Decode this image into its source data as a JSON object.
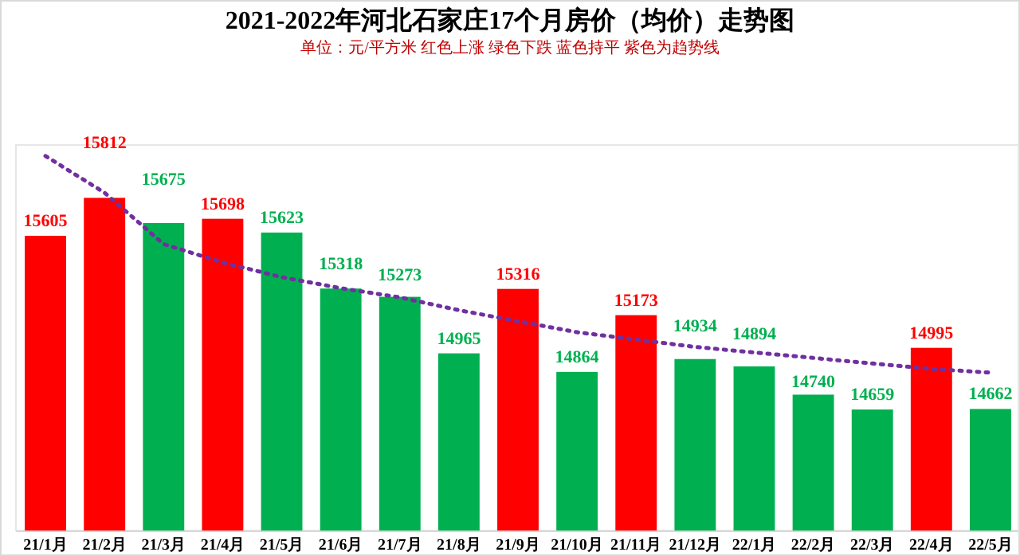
{
  "chart_data": {
    "type": "bar",
    "title": "2021-2022年河北石家庄17个月房价（均价）走势图",
    "subtitle": "单位：元/平方米   红色上涨   绿色下跌   蓝色持平   紫色为趋势线",
    "categories": [
      "21/1月",
      "21/2月",
      "21/3月",
      "21/4月",
      "21/5月",
      "21/6月",
      "21/7月",
      "21/8月",
      "21/9月",
      "21/10月",
      "21/11月",
      "21/12月",
      "22/1月",
      "22/2月",
      "22/3月",
      "22/4月",
      "22/5月"
    ],
    "ylim": [
      14000,
      16100
    ],
    "series": [
      {
        "values": [
          15605,
          15812,
          15675,
          15698,
          15623,
          15318,
          15273,
          14965,
          15316,
          14864,
          15173,
          14934,
          14894,
          14740,
          14659,
          14995,
          14662
        ],
        "value_labels": [
          "15605",
          "15812",
          "15675",
          "15698",
          "15623",
          "15318",
          "15273",
          "14965",
          "15316",
          "14864",
          "15173",
          "14934",
          "14894",
          "14740",
          "14659",
          "14995",
          "14662"
        ],
        "colors": [
          "#ff0000",
          "#ff0000",
          "#00b050",
          "#ff0000",
          "#00b050",
          "#00b050",
          "#00b050",
          "#00b050",
          "#ff0000",
          "#00b050",
          "#ff0000",
          "#00b050",
          "#00b050",
          "#00b050",
          "#00b050",
          "#ff0000",
          "#00b050"
        ]
      },
      {
        "type": "line",
        "color": "#7030a0",
        "line_style": "dotted",
        "values": [
          16040,
          15840,
          15560,
          15460,
          15380,
          15320,
          15270,
          15200,
          15140,
          15080,
          15040,
          15000,
          14970,
          14940,
          14910,
          14880,
          14860
        ]
      }
    ]
  }
}
